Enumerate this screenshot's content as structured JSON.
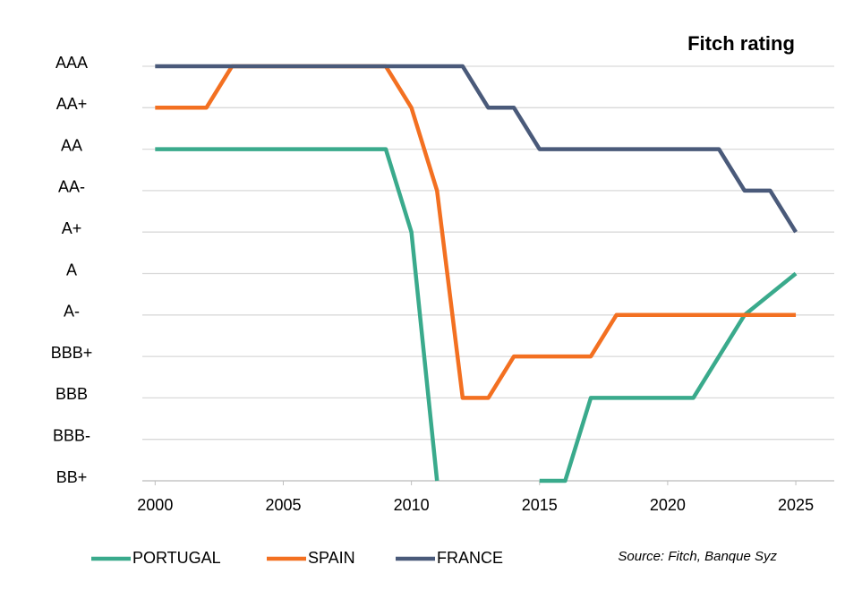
{
  "chart_data": {
    "type": "line",
    "title": "Fitch rating",
    "source": "Source: Fitch, Banque Syz",
    "xlim": [
      1999.5,
      2026.5
    ],
    "xticks": [
      2000,
      2005,
      2010,
      2015,
      2020,
      2025
    ],
    "ylim": [
      0,
      10
    ],
    "yticks": [
      {
        "value": 0,
        "label": "BB+"
      },
      {
        "value": 1,
        "label": "BBB-"
      },
      {
        "value": 2,
        "label": "BBB"
      },
      {
        "value": 3,
        "label": "BBB+"
      },
      {
        "value": 4,
        "label": "A-"
      },
      {
        "value": 5,
        "label": "A"
      },
      {
        "value": 6,
        "label": "A+"
      },
      {
        "value": 7,
        "label": "AA-"
      },
      {
        "value": 8,
        "label": "AA"
      },
      {
        "value": 9,
        "label": "AA+"
      },
      {
        "value": 10,
        "label": "AAA"
      }
    ],
    "grid": true,
    "series": [
      {
        "name": "PORTUGAL",
        "color": "#3aaa8c",
        "x": [
          2000,
          2009,
          2010,
          2011,
          2013,
          2015,
          2016,
          2017,
          2021,
          2023,
          2025
        ],
        "values": [
          8,
          8,
          6,
          0,
          null,
          0,
          0,
          2,
          2,
          4,
          5
        ]
      },
      {
        "name": "SPAIN",
        "color": "#f37021",
        "x": [
          2000,
          2002,
          2003,
          2009,
          2010,
          2011,
          2012,
          2013,
          2014,
          2017,
          2018,
          2025
        ],
        "values": [
          9,
          9,
          10,
          10,
          9,
          7,
          2,
          2,
          3,
          3,
          4,
          4
        ]
      },
      {
        "name": "FRANCE",
        "color": "#4a5a7a",
        "x": [
          2000,
          2012,
          2013,
          2014,
          2015,
          2022,
          2023,
          2024,
          2025
        ],
        "values": [
          10,
          10,
          9,
          9,
          8,
          8,
          7,
          7,
          6
        ]
      }
    ]
  }
}
